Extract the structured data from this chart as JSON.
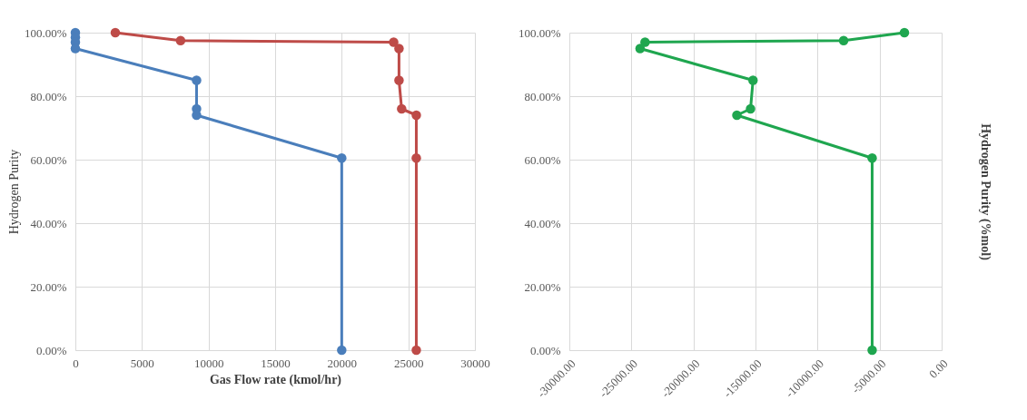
{
  "chart_data": [
    {
      "type": "line",
      "xlabel": "Gas Flow rate (kmol/hr)",
      "ylabel": "Hydrogen Purity",
      "xlim": [
        0,
        30000
      ],
      "xticks": [
        0,
        5000,
        10000,
        15000,
        20000,
        25000,
        30000
      ],
      "ylim": [
        0,
        100
      ],
      "yticks": [
        {
          "value": 0,
          "label": "0.00%"
        },
        {
          "value": 20,
          "label": "20.00%"
        },
        {
          "value": 40,
          "label": "40.00%"
        },
        {
          "value": 60,
          "label": "60.00%"
        },
        {
          "value": 80,
          "label": "80.00%"
        },
        {
          "value": 100,
          "label": "100.00%"
        }
      ],
      "grid": true,
      "marker": "circle",
      "line_style": "solid",
      "series": [
        {
          "color": "#4a7ebb",
          "x": [
            0,
            0,
            0,
            0,
            9100,
            9100,
            9100,
            20000,
            20000
          ],
          "values": [
            100,
            98.5,
            97,
            95,
            85,
            76,
            74,
            60.5,
            0
          ]
        },
        {
          "color": "#be4b48",
          "x": [
            3000,
            7900,
            23900,
            24300,
            24300,
            24500,
            25600,
            25600,
            25600
          ],
          "values": [
            100,
            97.5,
            97,
            95,
            85,
            76,
            74,
            60.5,
            0
          ]
        }
      ]
    },
    {
      "type": "line",
      "y2label": "Hydrogen Purity (%mol)",
      "xlim": [
        -30000,
        0
      ],
      "xticks": [
        {
          "value": -30000,
          "label": "-30000.00"
        },
        {
          "value": -25000,
          "label": "-25000.00"
        },
        {
          "value": -20000,
          "label": "-20000.00"
        },
        {
          "value": -15000,
          "label": "-15000.00"
        },
        {
          "value": -10000,
          "label": "-10000.00"
        },
        {
          "value": -5000,
          "label": "-5000.00"
        },
        {
          "value": 0,
          "label": "0.00"
        }
      ],
      "ylim": [
        0,
        100
      ],
      "yticks": [
        {
          "value": 0,
          "label": "0.00%"
        },
        {
          "value": 20,
          "label": "20.00%"
        },
        {
          "value": 40,
          "label": "40.00%"
        },
        {
          "value": 60,
          "label": "60.00%"
        },
        {
          "value": 80,
          "label": "80.00%"
        },
        {
          "value": 100,
          "label": "100.00%"
        }
      ],
      "grid": true,
      "marker": "circle",
      "line_style": "solid",
      "series": [
        {
          "color": "#1fa64f",
          "x": [
            -3000,
            -7900,
            -23900,
            -24300,
            -15200,
            -15400,
            -16500,
            -5600,
            -5600
          ],
          "values": [
            100,
            97.5,
            97,
            95,
            85,
            76,
            74,
            60.5,
            0
          ]
        }
      ]
    }
  ]
}
